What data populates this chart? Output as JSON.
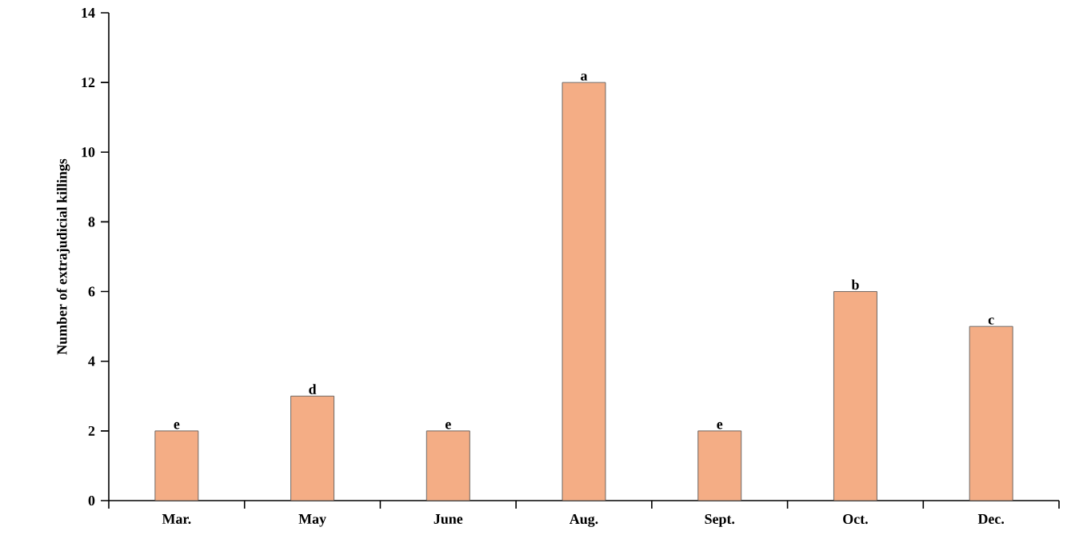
{
  "chart_data": {
    "type": "bar",
    "ylabel": "Number of extrajudicial killings",
    "categories": [
      "Mar.",
      "May",
      "June",
      "Aug.",
      "Sept.",
      "Oct.",
      "Dec."
    ],
    "values": [
      2,
      3,
      2,
      12,
      2,
      6,
      5
    ],
    "value_labels": [
      "e",
      "d",
      "e",
      "a",
      "e",
      "b",
      "c"
    ],
    "color": "#f4ad85",
    "ylim": [
      0,
      14
    ],
    "yticks": [
      0,
      2,
      4,
      6,
      8,
      10,
      12,
      14
    ],
    "grid": false
  }
}
